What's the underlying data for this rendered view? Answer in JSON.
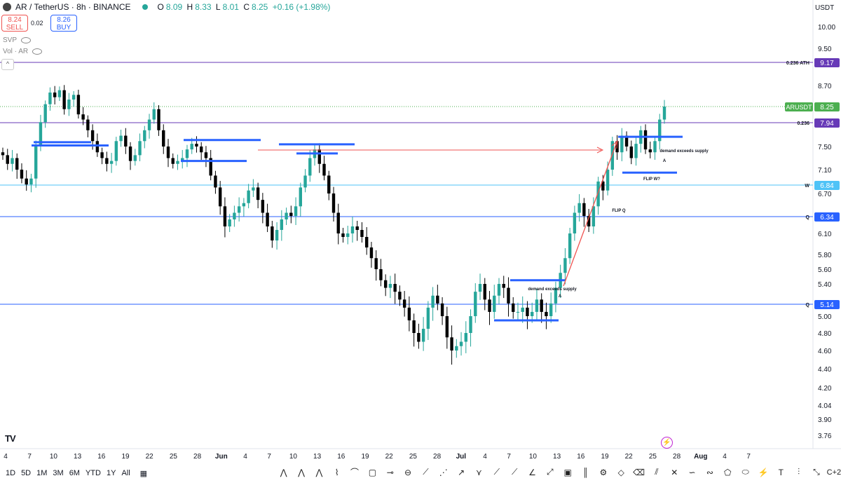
{
  "header": {
    "symbol": "AR / TetherUS · 8h · BINANCE",
    "ohlc": {
      "o_label": "O",
      "o": "8.09",
      "h_label": "H",
      "h": "8.33",
      "l_label": "L",
      "l": "8.01",
      "c_label": "C",
      "c": "8.25",
      "change": "+0.16 (+1.98%)"
    },
    "sell_price": "8.24",
    "sell_label": "SELL",
    "spread": "0.02",
    "buy_price": "8.26",
    "buy_label": "BUY",
    "indicators": [
      "SVP",
      "Vol · AR"
    ],
    "currency": "USDT"
  },
  "colors": {
    "up": "#26a69a",
    "down": "#000000",
    "blue": "#2962ff",
    "purple": "#673ab7",
    "cyan": "#4fc3f7",
    "price": "#4caf50"
  },
  "chart_data": {
    "type": "candlestick",
    "y_ticks": [
      "10.00",
      "9.50",
      "9.17",
      "8.70",
      "8.25",
      "7.94",
      "7.50",
      "7.10",
      "6.84",
      "6.70",
      "6.34",
      "6.10",
      "5.80",
      "5.60",
      "5.40",
      "5.14",
      "5.00",
      "4.80",
      "4.60",
      "4.40",
      "4.20",
      "4.04",
      "3.90",
      "3.76"
    ],
    "x_ticks": [
      "4",
      "7",
      "10",
      "13",
      "16",
      "19",
      "22",
      "25",
      "28",
      "Jun",
      "4",
      "7",
      "10",
      "13",
      "16",
      "19",
      "22",
      "25",
      "28",
      "Jul",
      "4",
      "7",
      "10",
      "13",
      "16",
      "19",
      "22",
      "25",
      "28",
      "Aug",
      "4",
      "7"
    ],
    "ylim": [
      3.76,
      10.0
    ],
    "horizontal_levels": [
      {
        "value": 9.17,
        "label": "9.17",
        "note": "0.236 ATH",
        "color": "#673ab7"
      },
      {
        "value": 7.94,
        "label": "7.94",
        "note": "0.236",
        "color": "#673ab7"
      },
      {
        "value": 6.84,
        "label": "6.84",
        "note": "W",
        "color": "#4fc3f7"
      },
      {
        "value": 6.34,
        "label": "6.34",
        "note": "Q",
        "color": "#2962ff"
      },
      {
        "value": 5.14,
        "label": "5.14",
        "note": "Q",
        "color": "#2962ff"
      }
    ],
    "last_price": {
      "symbol": "ARUSDT",
      "value": 8.25
    },
    "annotations": [
      "demand exceeds supply",
      "A",
      "demand exceeds supply",
      "A",
      "FLIP W?",
      "FLIP Q"
    ],
    "close_series": [
      7.35,
      7.2,
      7.3,
      7.1,
      6.95,
      6.85,
      6.95,
      7.5,
      7.95,
      8.3,
      8.55,
      8.45,
      8.6,
      8.2,
      8.4,
      8.5,
      8.1,
      8.0,
      7.8,
      7.6,
      7.4,
      7.3,
      7.2,
      7.25,
      7.6,
      7.7,
      7.5,
      7.25,
      7.35,
      7.6,
      7.8,
      8.0,
      8.2,
      7.8,
      7.5,
      7.3,
      7.2,
      7.25,
      7.3,
      7.45,
      7.55,
      7.5,
      7.4,
      7.3,
      7.0,
      6.8,
      6.5,
      6.2,
      6.3,
      6.4,
      6.5,
      6.55,
      6.75,
      6.8,
      6.6,
      6.4,
      6.2,
      6.0,
      6.15,
      6.3,
      6.4,
      6.35,
      6.5,
      6.8,
      7.0,
      7.3,
      7.45,
      7.2,
      7.0,
      6.7,
      6.4,
      6.1,
      6.05,
      6.1,
      6.2,
      6.15,
      6.05,
      5.9,
      5.75,
      5.6,
      5.45,
      5.35,
      5.4,
      5.3,
      5.2,
      5.1,
      4.95,
      4.8,
      4.7,
      4.85,
      5.1,
      5.25,
      5.15,
      5.0,
      4.75,
      4.6,
      4.65,
      4.7,
      4.8,
      5.0,
      5.3,
      5.4,
      5.2,
      5.05,
      5.25,
      5.4,
      5.35,
      5.15,
      5.05,
      5.05,
      5.1,
      5.0,
      5.05,
      5.2,
      5.05,
      5.0,
      5.15,
      5.35,
      5.55,
      5.75,
      6.1,
      6.4,
      6.55,
      6.35,
      6.2,
      6.5,
      6.9,
      6.75,
      7.1,
      7.6,
      7.4,
      7.7,
      7.5,
      7.3,
      7.55,
      7.8,
      7.45,
      7.4,
      7.6,
      8.0,
      8.25
    ]
  },
  "timeframes": [
    "1D",
    "5D",
    "1M",
    "3M",
    "6M",
    "YTD",
    "1Y",
    "All"
  ],
  "toolbar": {
    "more": "C+2"
  },
  "watermark_text": "TV"
}
